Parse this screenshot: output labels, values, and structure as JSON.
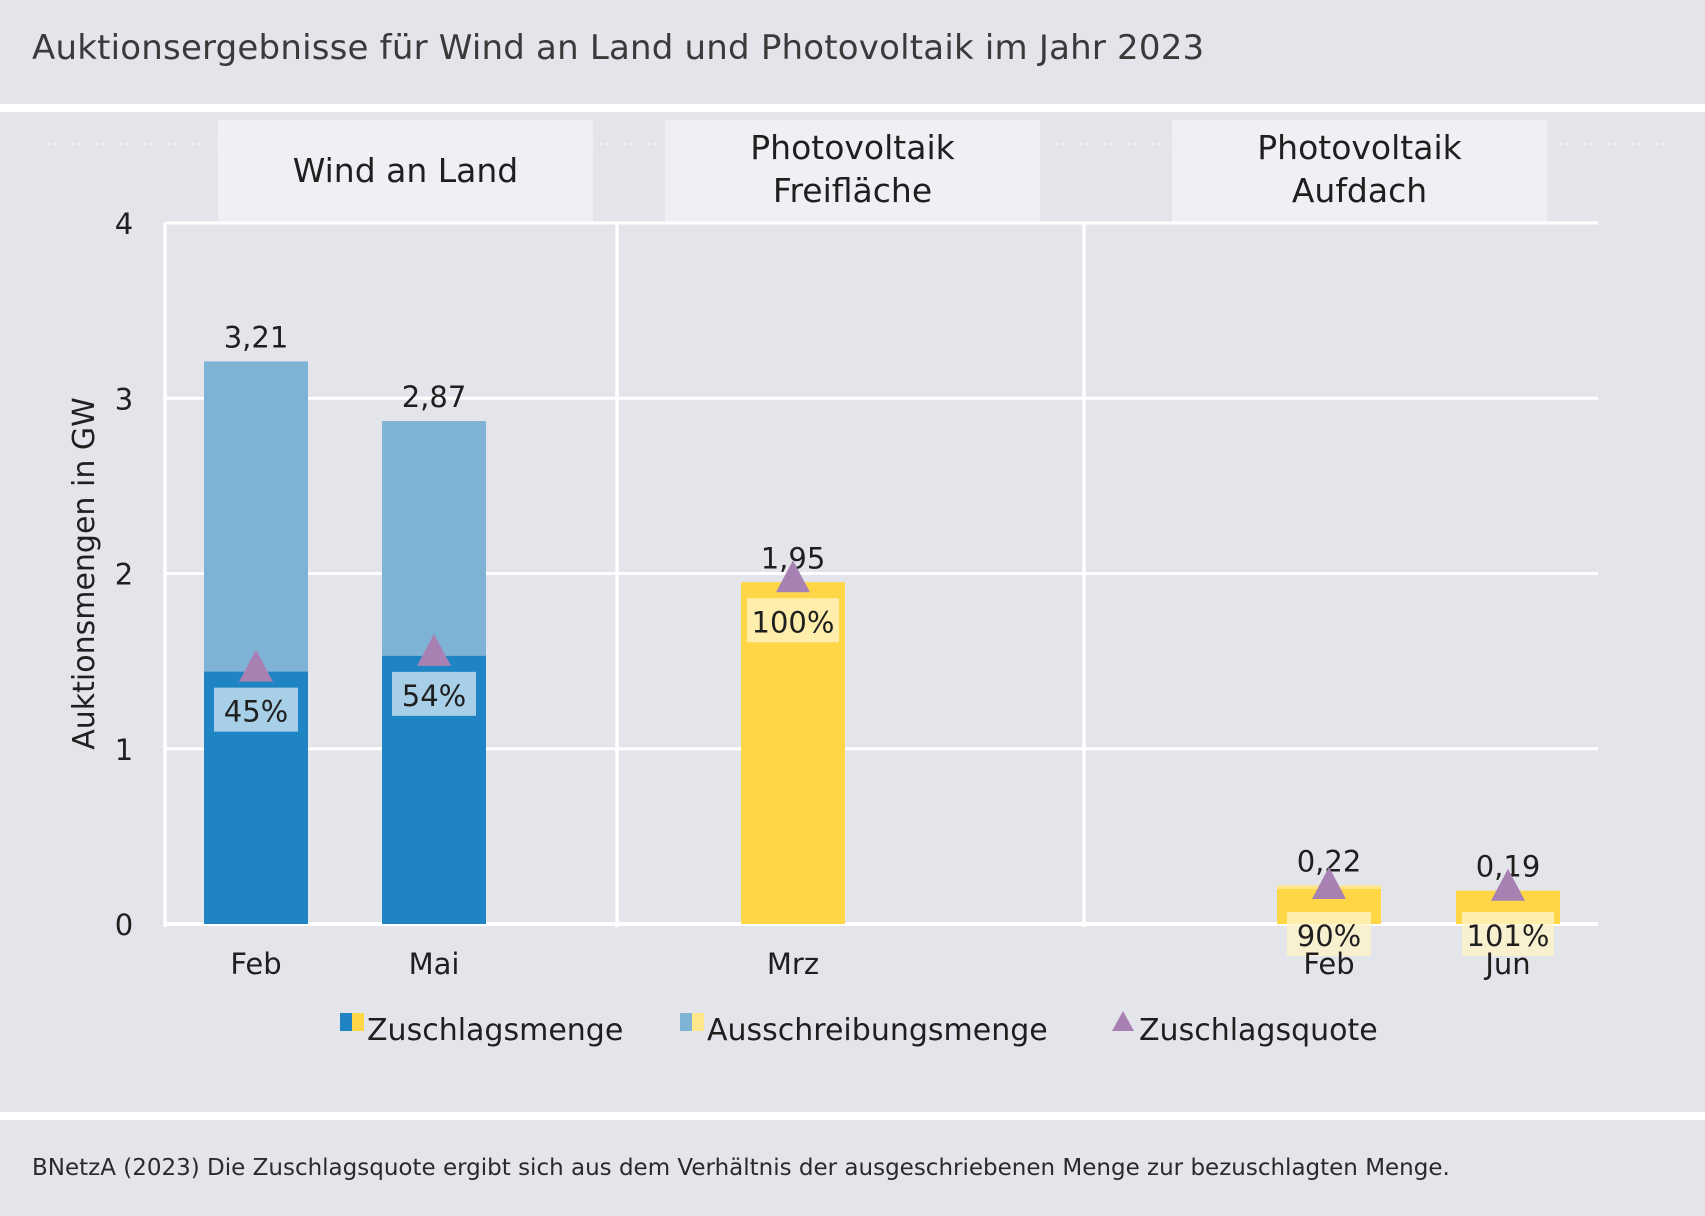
{
  "header": {
    "title": "Auktionsergebnisse für Wind an Land und Photovoltaik im Jahr 2023"
  },
  "footer": {
    "source": "BNetzA (2023) Die Zuschlagsquote ergibt sich aus dem Verhältnis der ausgeschriebenen Menge zur bezuschlagten Menge."
  },
  "colors": {
    "wind_award": "#1f84c3",
    "wind_tender": "#7fb3d6",
    "pv_award": "#ffd746",
    "pv_tender": "#ffe68a",
    "quota_marker": "#a881b3",
    "background": "#e4e5ea"
  },
  "chart_data": {
    "type": "bar",
    "title": "Auktionsergebnisse für Wind an Land und Photovoltaik im Jahr 2023",
    "ylabel": "Auktionsmengen in GW",
    "ylim": [
      0,
      4
    ],
    "yticks": [
      "0",
      "1",
      "2",
      "3",
      "4"
    ],
    "grid": true,
    "legend_position": "bottom",
    "panels": [
      {
        "title_lines": [
          "Wind an Land"
        ],
        "bars": [
          {
            "category": "Feb",
            "tender": 3.21,
            "tender_label": "3,21",
            "award": 1.44,
            "quota_label": "45%",
            "color": "wind"
          },
          {
            "category": "Mai",
            "tender": 2.87,
            "tender_label": "2,87",
            "award": 1.53,
            "quota_label": "54%",
            "color": "wind"
          }
        ]
      },
      {
        "title_lines": [
          "Photovoltaik",
          "Freifläche"
        ],
        "bars": [
          {
            "category": "Mrz",
            "tender": 1.95,
            "tender_label": "1,95",
            "award": 1.95,
            "quota_label": "100%",
            "color": "pv"
          }
        ]
      },
      {
        "title_lines": [
          "Photovoltaik",
          "Aufdach"
        ],
        "bars": [
          {
            "category": "Feb",
            "tender": 0.22,
            "tender_label": "0,22",
            "award": 0.2,
            "quota_label": "90%",
            "color": "pv"
          },
          {
            "category": "Jun",
            "tender": 0.19,
            "tender_label": "0,19",
            "award": 0.19,
            "quota_label": "101%",
            "color": "pv"
          }
        ]
      }
    ],
    "legend": [
      {
        "label": "Zuschlagsmenge",
        "kind": "award"
      },
      {
        "label": "Ausschreibungsmenge",
        "kind": "tender"
      },
      {
        "label": "Zuschlagsquote",
        "kind": "quota"
      }
    ]
  }
}
